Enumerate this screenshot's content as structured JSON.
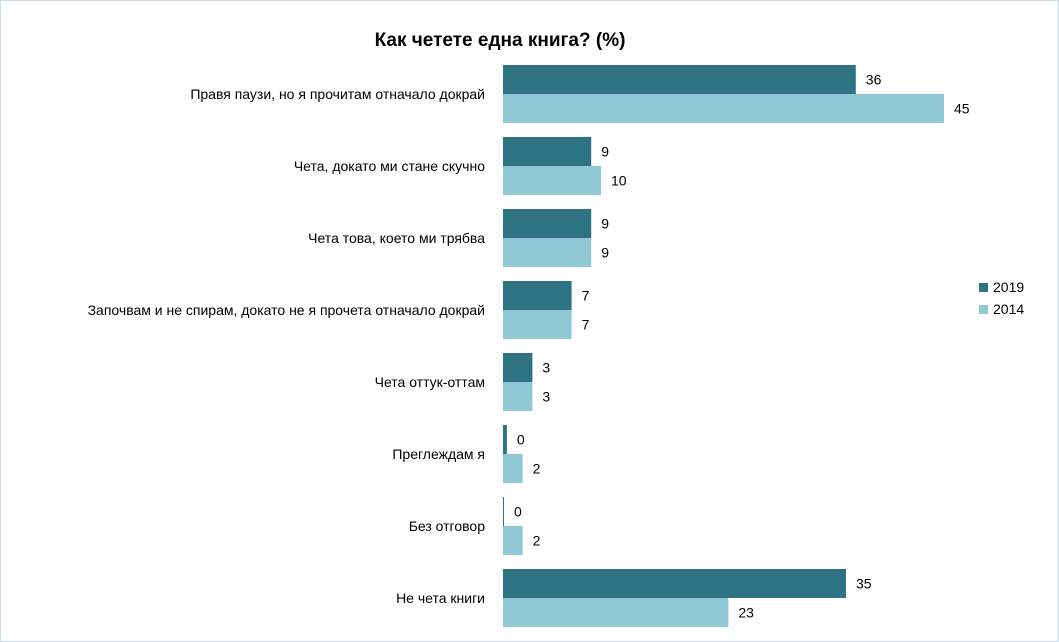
{
  "chart_data": {
    "type": "bar",
    "orientation": "horizontal",
    "title": "Как четете една книга? (%)",
    "categories": [
      "Правя паузи, но я прочитам отначало докрай",
      "Чета, докато ми стане скучно",
      "Чета това, което ми трябва",
      "Започвам и не спирам, докато не я прочета отначало докрай",
      "Чета оттук-оттам",
      "Преглеждам я",
      "Без отговор",
      "Не чета книги"
    ],
    "series": [
      {
        "name": "2019",
        "color": "#2e7384",
        "values": [
          36,
          9,
          9,
          7,
          3,
          0.4,
          0.1,
          35
        ]
      },
      {
        "name": "2014",
        "color": "#8fc8d4",
        "values": [
          45,
          10,
          9,
          7,
          3,
          2,
          2,
          23
        ]
      }
    ],
    "value_labels": [
      [
        "36",
        "9",
        "9",
        "7",
        "3",
        "0",
        "0",
        "35"
      ],
      [
        "45",
        "10",
        "9",
        "7",
        "3",
        "2",
        "2",
        "23"
      ]
    ],
    "xlim": [
      0,
      50
    ],
    "grid": false,
    "legend_position": "right"
  }
}
